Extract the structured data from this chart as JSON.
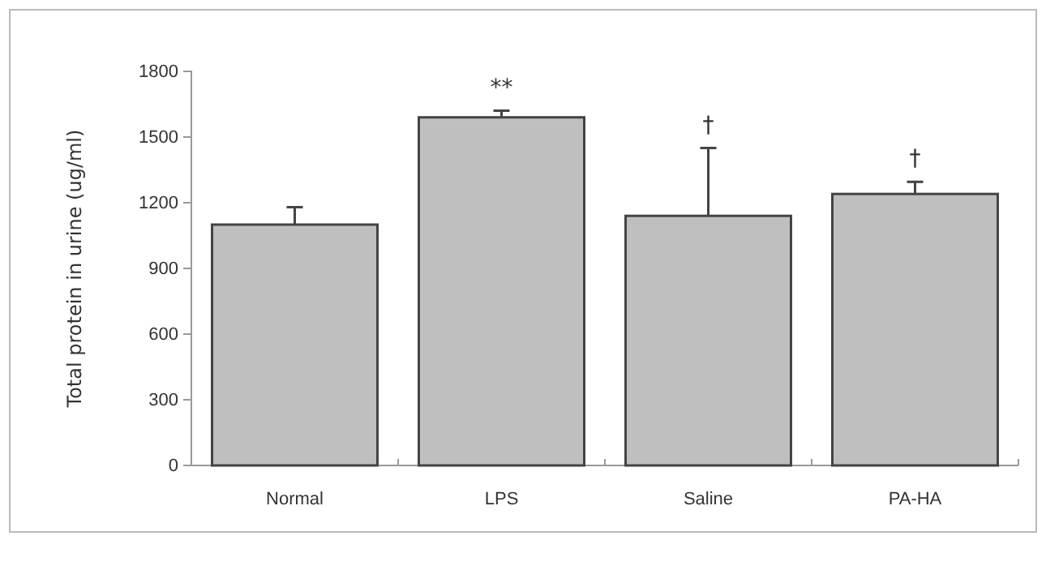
{
  "chart_data": {
    "type": "bar",
    "ylabel": "Total protein in urine (ug/ml)",
    "categories": [
      "Normal",
      "LPS",
      "Saline",
      "PA-HA"
    ],
    "values": [
      1100,
      1590,
      1140,
      1240
    ],
    "errors": [
      80,
      30,
      310,
      55
    ],
    "color": "#bfbfbf",
    "ylim": [
      0,
      1800
    ],
    "yticks": [
      0,
      300,
      600,
      900,
      1200,
      1500,
      1800
    ],
    "grid": false,
    "annotations": [
      "**",
      "†",
      "†"
    ]
  }
}
